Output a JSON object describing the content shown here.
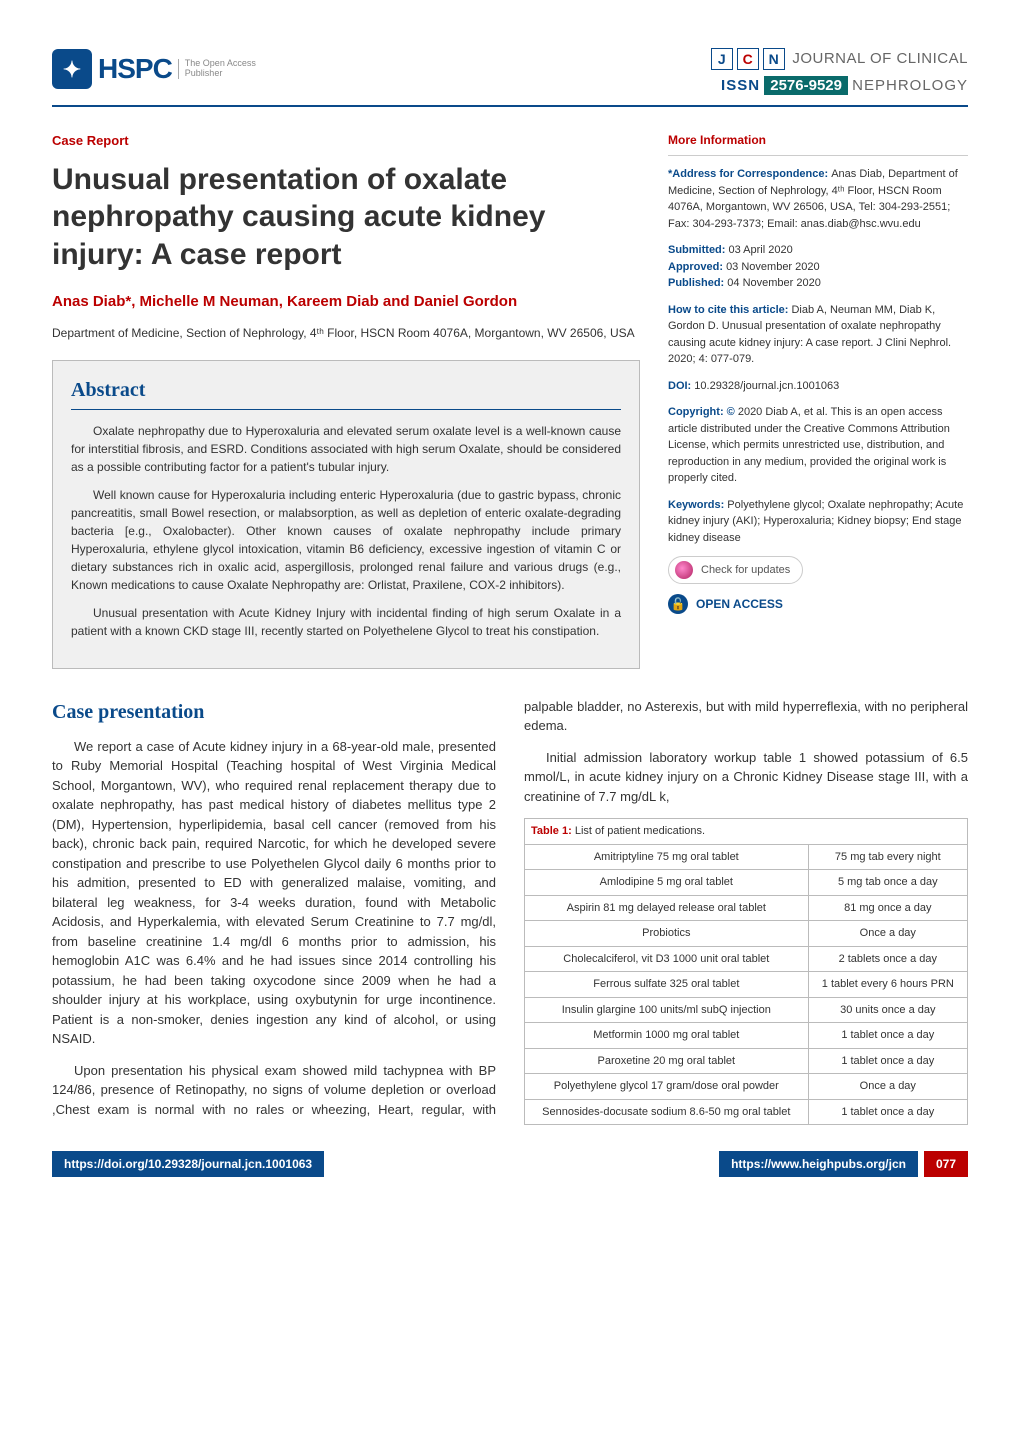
{
  "header": {
    "logo_text": "HSPC",
    "logo_sub1": "The Open Access",
    "logo_sub2": "Publisher",
    "jcn": {
      "j": "J",
      "c": "C",
      "n": "N"
    },
    "journal_line1": "JOURNAL OF CLINICAL",
    "issn_label": "ISSN",
    "issn_value": "2576-9529",
    "nephrology": "NEPHROLOGY"
  },
  "article": {
    "type": "Case Report",
    "title": "Unusual presentation of oxalate nephropathy causing acute kidney injury: A case report",
    "authors": "Anas Diab*, Michelle M Neuman, Kareem Diab and Daniel Gordon",
    "affiliation": "Department of Medicine, Section of Nephrology, 4ᵗʰ Floor, HSCN Room 4076A, Morgantown, WV 26506, USA"
  },
  "abstract": {
    "heading": "Abstract",
    "p1": "Oxalate nephropathy due to Hyperoxaluria and elevated serum oxalate level is a well-known cause for interstitial fibrosis, and ESRD. Conditions associated with high serum Oxalate, should be considered as a possible contributing factor for a patient's tubular injury.",
    "p2": "Well known cause for Hyperoxaluria including enteric Hyperoxaluria (due to gastric bypass, chronic pancreatitis, small Bowel resection, or malabsorption, as well as depletion of enteric oxalate-degrading bacteria [e.g., Oxalobacter). Other known causes of oxalate nephropathy include primary Hyperoxaluria, ethylene glycol intoxication, vitamin B6 deficiency, excessive ingestion of vitamin C or dietary substances rich in oxalic acid, aspergillosis, prolonged renal failure and various drugs (e.g., Known medications to cause Oxalate Nephropathy are: Orlistat, Praxilene, COX-2 inhibitors).",
    "p3": "Unusual presentation with Acute Kidney Injury with incidental finding of high serum Oxalate in a patient with a known CKD stage III, recently started on Polyethelene Glycol to treat his constipation."
  },
  "sidebar": {
    "more_info": "More Information",
    "addr_label": "*Address for Correspondence: ",
    "addr_body": "Anas Diab, Department of Medicine, Section of Nephrology, 4ᵗʰ Floor, HSCN Room 4076A, Morgantown, WV 26506, USA, Tel: 304-293-2551; Fax: 304-293-7373; Email: anas.diab@hsc.wvu.edu",
    "submitted_label": "Submitted: ",
    "submitted": "03 April 2020",
    "approved_label": "Approved: ",
    "approved": "03 November 2020",
    "published_label": "Published: ",
    "published": "04 November 2020",
    "cite_label": "How to cite this article: ",
    "cite": "Diab A, Neuman MM, Diab K, Gordon D. Unusual presentation of oxalate nephropathy causing acute kidney injury: A case report. J Clini Nephrol. 2020; 4: 077-079.",
    "doi_label": "DOI: ",
    "doi": "10.29328/journal.jcn.1001063",
    "copyright_label": "Copyright: © ",
    "copyright": "2020 Diab A, et al. This is an open access article distributed under the Creative Commons Attribution License, which permits unrestricted use, distribution, and reproduction in any medium, provided the original work is properly cited.",
    "keywords_label": "Keywords: ",
    "keywords": "Polyethylene glycol; Oxalate nephropathy; Acute kidney injury (AKI); Hyperoxaluria; Kidney biopsy; End stage kidney disease",
    "check_updates": "Check for updates",
    "open_access": "OPEN ACCESS"
  },
  "body": {
    "section_h": "Case presentation",
    "p1": "We report a case of Acute kidney injury in a 68-year-old male, presented to Ruby Memorial Hospital (Teaching hospital of West Virginia Medical School, Morgantown, WV), who required renal replacement therapy due to oxalate nephropathy, has past medical history of diabetes mellitus type 2 (DM), Hypertension, hyperlipidemia, basal cell cancer (removed from his back), chronic back pain, required Narcotic, for which he developed severe constipation and prescribe to use Polyethelen Glycol daily 6 months prior to his admition, presented to ED with generalized malaise, vomiting, and bilateral leg weakness, for 3-4 weeks duration, found with Metabolic Acidosis, and Hyperkalemia, with elevated Serum Creatinine to 7.7 mg/dl, from baseline creatinine 1.4 mg/dl 6 months prior to admission, his hemoglobin A1C was 6.4% and he had issues since 2014 controlling his potassium, he had been taking oxycodone since 2009 when he had a shoulder injury at his workplace, using oxybutynin for urge incontinence. Patient is a non-smoker, denies ingestion any kind of alcohol, or using NSAID.",
    "p2": "Upon presentation his physical exam showed mild tachypnea with BP 124/86, presence of Retinopathy, no signs of volume depletion or overload ,Chest exam is normal with no rales or wheezing, Heart, regular, with palpable bladder, no Asterexis, but with mild hyperreflexia, with no peripheral edema.",
    "p3": "Initial admission laboratory workup table 1 showed potassium of 6.5 mmol/L, in acute kidney injury on a Chronic Kidney Disease stage III, with a creatinine of 7.7 mg/dL k,"
  },
  "table1": {
    "caption_num": "Table 1:",
    "caption_text": " List of patient medications.",
    "rows": [
      [
        "Amitriptyline 75 mg oral tablet",
        "75 mg tab every night"
      ],
      [
        "Amlodipine 5 mg oral tablet",
        "5 mg tab once a day"
      ],
      [
        "Aspirin 81 mg delayed release oral tablet",
        "81 mg once a day"
      ],
      [
        "Probiotics",
        "Once a day"
      ],
      [
        "Cholecalciferol, vit D3 1000 unit oral tablet",
        "2 tablets once a day"
      ],
      [
        "Ferrous sulfate 325 oral tablet",
        "1 tablet every 6 hours PRN"
      ],
      [
        "Insulin glargine 100 units/ml subQ injection",
        "30 units once a day"
      ],
      [
        "Metformin 1000 mg oral tablet",
        "1 tablet once a day"
      ],
      [
        "Paroxetine 20 mg oral tablet",
        "1 tablet once a day"
      ],
      [
        "Polyethylene glycol 17 gram/dose oral powder",
        "Once a day"
      ],
      [
        "Sennosides-docusate sodium 8.6-50 mg oral tablet",
        "1 tablet once a day"
      ]
    ]
  },
  "footer": {
    "doi_url": "https://doi.org/10.29328/journal.jcn.1001063",
    "site_url": "https://www.heighpubs.org/jcn",
    "page": "077"
  },
  "colors": {
    "brand_blue": "#0a4a8a",
    "brand_red": "#b00",
    "issn_bg": "#0a6b6b",
    "box_bg": "#f0f0f0",
    "border": "#bbb"
  }
}
